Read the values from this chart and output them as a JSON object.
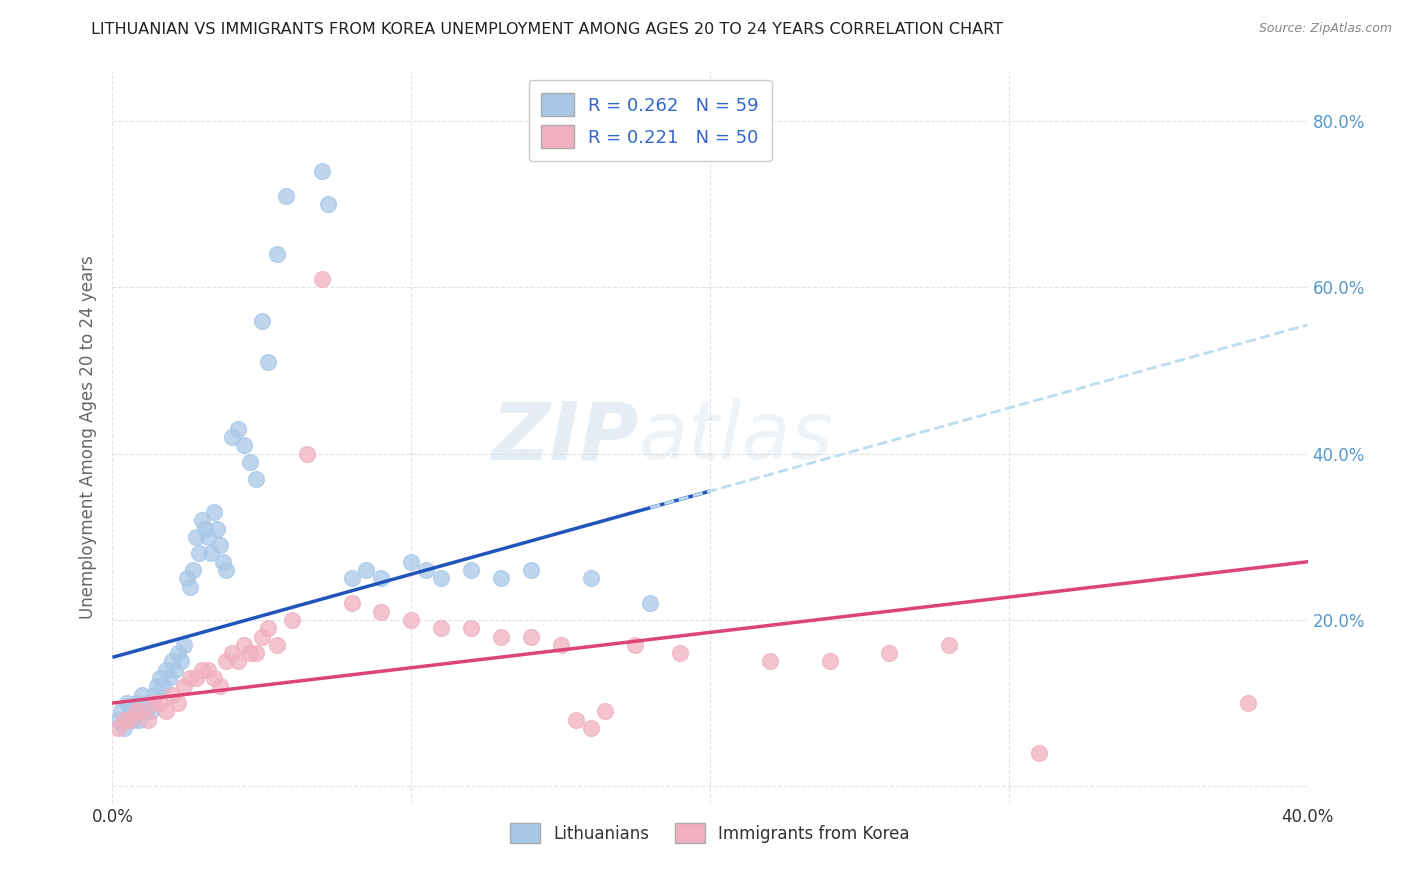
{
  "title": "LITHUANIAN VS IMMIGRANTS FROM KOREA UNEMPLOYMENT AMONG AGES 20 TO 24 YEARS CORRELATION CHART",
  "source": "Source: ZipAtlas.com",
  "ylabel": "Unemployment Among Ages 20 to 24 years",
  "watermark": "ZIPatlas",
  "xlim": [
    0.0,
    0.4
  ],
  "ylim": [
    -0.02,
    0.86
  ],
  "blue_color": "#a8c8e8",
  "pink_color": "#f0b0c0",
  "blue_line_color": "#2255bb",
  "pink_line_color": "#dd4477",
  "blue_dashed_color": "#bbddee",
  "title_color": "#222222",
  "axis_label_color": "#666666",
  "tick_color_right": "#5599cc",
  "grid_color": "#dddddd",
  "legend_text_color": "#3366cc",
  "scatter_blue": [
    [
      0.002,
      0.08
    ],
    [
      0.003,
      0.09
    ],
    [
      0.004,
      0.07
    ],
    [
      0.005,
      0.1
    ],
    [
      0.006,
      0.09
    ],
    [
      0.007,
      0.08
    ],
    [
      0.008,
      0.1
    ],
    [
      0.009,
      0.08
    ],
    [
      0.01,
      0.11
    ],
    [
      0.011,
      0.09
    ],
    [
      0.012,
      0.1
    ],
    [
      0.013,
      0.09
    ],
    [
      0.014,
      0.11
    ],
    [
      0.015,
      0.12
    ],
    [
      0.016,
      0.13
    ],
    [
      0.017,
      0.12
    ],
    [
      0.018,
      0.14
    ],
    [
      0.019,
      0.13
    ],
    [
      0.02,
      0.15
    ],
    [
      0.021,
      0.14
    ],
    [
      0.022,
      0.16
    ],
    [
      0.023,
      0.15
    ],
    [
      0.024,
      0.17
    ],
    [
      0.025,
      0.25
    ],
    [
      0.026,
      0.24
    ],
    [
      0.027,
      0.26
    ],
    [
      0.028,
      0.3
    ],
    [
      0.029,
      0.28
    ],
    [
      0.03,
      0.32
    ],
    [
      0.031,
      0.31
    ],
    [
      0.032,
      0.3
    ],
    [
      0.033,
      0.28
    ],
    [
      0.034,
      0.33
    ],
    [
      0.035,
      0.31
    ],
    [
      0.036,
      0.29
    ],
    [
      0.037,
      0.27
    ],
    [
      0.038,
      0.26
    ],
    [
      0.04,
      0.42
    ],
    [
      0.042,
      0.43
    ],
    [
      0.044,
      0.41
    ],
    [
      0.046,
      0.39
    ],
    [
      0.048,
      0.37
    ],
    [
      0.05,
      0.56
    ],
    [
      0.052,
      0.51
    ],
    [
      0.055,
      0.64
    ],
    [
      0.058,
      0.71
    ],
    [
      0.07,
      0.74
    ],
    [
      0.072,
      0.7
    ],
    [
      0.08,
      0.25
    ],
    [
      0.085,
      0.26
    ],
    [
      0.09,
      0.25
    ],
    [
      0.1,
      0.27
    ],
    [
      0.105,
      0.26
    ],
    [
      0.11,
      0.25
    ],
    [
      0.12,
      0.26
    ],
    [
      0.13,
      0.25
    ],
    [
      0.14,
      0.26
    ],
    [
      0.16,
      0.25
    ],
    [
      0.18,
      0.22
    ]
  ],
  "scatter_pink": [
    [
      0.002,
      0.07
    ],
    [
      0.004,
      0.08
    ],
    [
      0.006,
      0.08
    ],
    [
      0.008,
      0.09
    ],
    [
      0.01,
      0.09
    ],
    [
      0.012,
      0.08
    ],
    [
      0.014,
      0.1
    ],
    [
      0.016,
      0.1
    ],
    [
      0.018,
      0.09
    ],
    [
      0.02,
      0.11
    ],
    [
      0.022,
      0.1
    ],
    [
      0.024,
      0.12
    ],
    [
      0.026,
      0.13
    ],
    [
      0.028,
      0.13
    ],
    [
      0.03,
      0.14
    ],
    [
      0.032,
      0.14
    ],
    [
      0.034,
      0.13
    ],
    [
      0.036,
      0.12
    ],
    [
      0.038,
      0.15
    ],
    [
      0.04,
      0.16
    ],
    [
      0.042,
      0.15
    ],
    [
      0.044,
      0.17
    ],
    [
      0.046,
      0.16
    ],
    [
      0.048,
      0.16
    ],
    [
      0.05,
      0.18
    ],
    [
      0.052,
      0.19
    ],
    [
      0.055,
      0.17
    ],
    [
      0.06,
      0.2
    ],
    [
      0.065,
      0.4
    ],
    [
      0.07,
      0.61
    ],
    [
      0.08,
      0.22
    ],
    [
      0.09,
      0.21
    ],
    [
      0.1,
      0.2
    ],
    [
      0.11,
      0.19
    ],
    [
      0.12,
      0.19
    ],
    [
      0.13,
      0.18
    ],
    [
      0.14,
      0.18
    ],
    [
      0.15,
      0.17
    ],
    [
      0.155,
      0.08
    ],
    [
      0.16,
      0.07
    ],
    [
      0.165,
      0.09
    ],
    [
      0.175,
      0.17
    ],
    [
      0.19,
      0.16
    ],
    [
      0.22,
      0.15
    ],
    [
      0.24,
      0.15
    ],
    [
      0.26,
      0.16
    ],
    [
      0.28,
      0.17
    ],
    [
      0.31,
      0.04
    ],
    [
      0.38,
      0.1
    ]
  ],
  "blue_trend_x": [
    0.0,
    0.2
  ],
  "blue_trend_y": [
    0.155,
    0.375
  ],
  "blue_dash_trend_x": [
    0.15,
    0.4
  ],
  "blue_dash_trend_y": [
    0.305,
    0.555
  ],
  "pink_trend_x": [
    0.0,
    0.4
  ],
  "pink_trend_y": [
    0.1,
    0.27
  ],
  "figsize": [
    14.06,
    8.92
  ],
  "dpi": 100
}
